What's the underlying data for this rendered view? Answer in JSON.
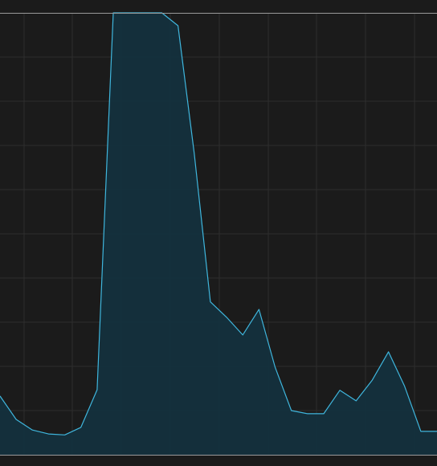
{
  "chart_data": {
    "type": "area",
    "title": "",
    "xlabel": "",
    "ylabel": "",
    "grid": true,
    "legend": "none",
    "x": [
      0,
      1,
      2,
      3,
      4,
      5,
      6,
      7,
      8,
      9,
      10,
      11,
      12,
      13,
      14,
      15,
      16,
      17,
      18,
      19,
      20,
      21,
      22,
      23,
      24,
      25,
      26,
      27
    ],
    "xlim": [
      0,
      27
    ],
    "ylim": [
      0,
      100
    ],
    "series": [
      {
        "color": "#3fb6dd",
        "fill": "#14303d",
        "values": [
          13.3,
          8,
          5.6,
          4.7,
          4.5,
          6.2,
          14.7,
          100,
          100,
          100,
          100,
          97.1,
          68.2,
          34.6,
          31.1,
          27.1,
          32.9,
          19.8,
          10,
          9.3,
          9.3,
          14.6,
          12.2,
          16.9,
          23.3,
          15.5,
          5.3,
          5.3
        ]
      }
    ],
    "colors": {
      "background": "#1b1b1b",
      "grid": "#2e2e2e",
      "frame": "#9a9a9a"
    }
  }
}
